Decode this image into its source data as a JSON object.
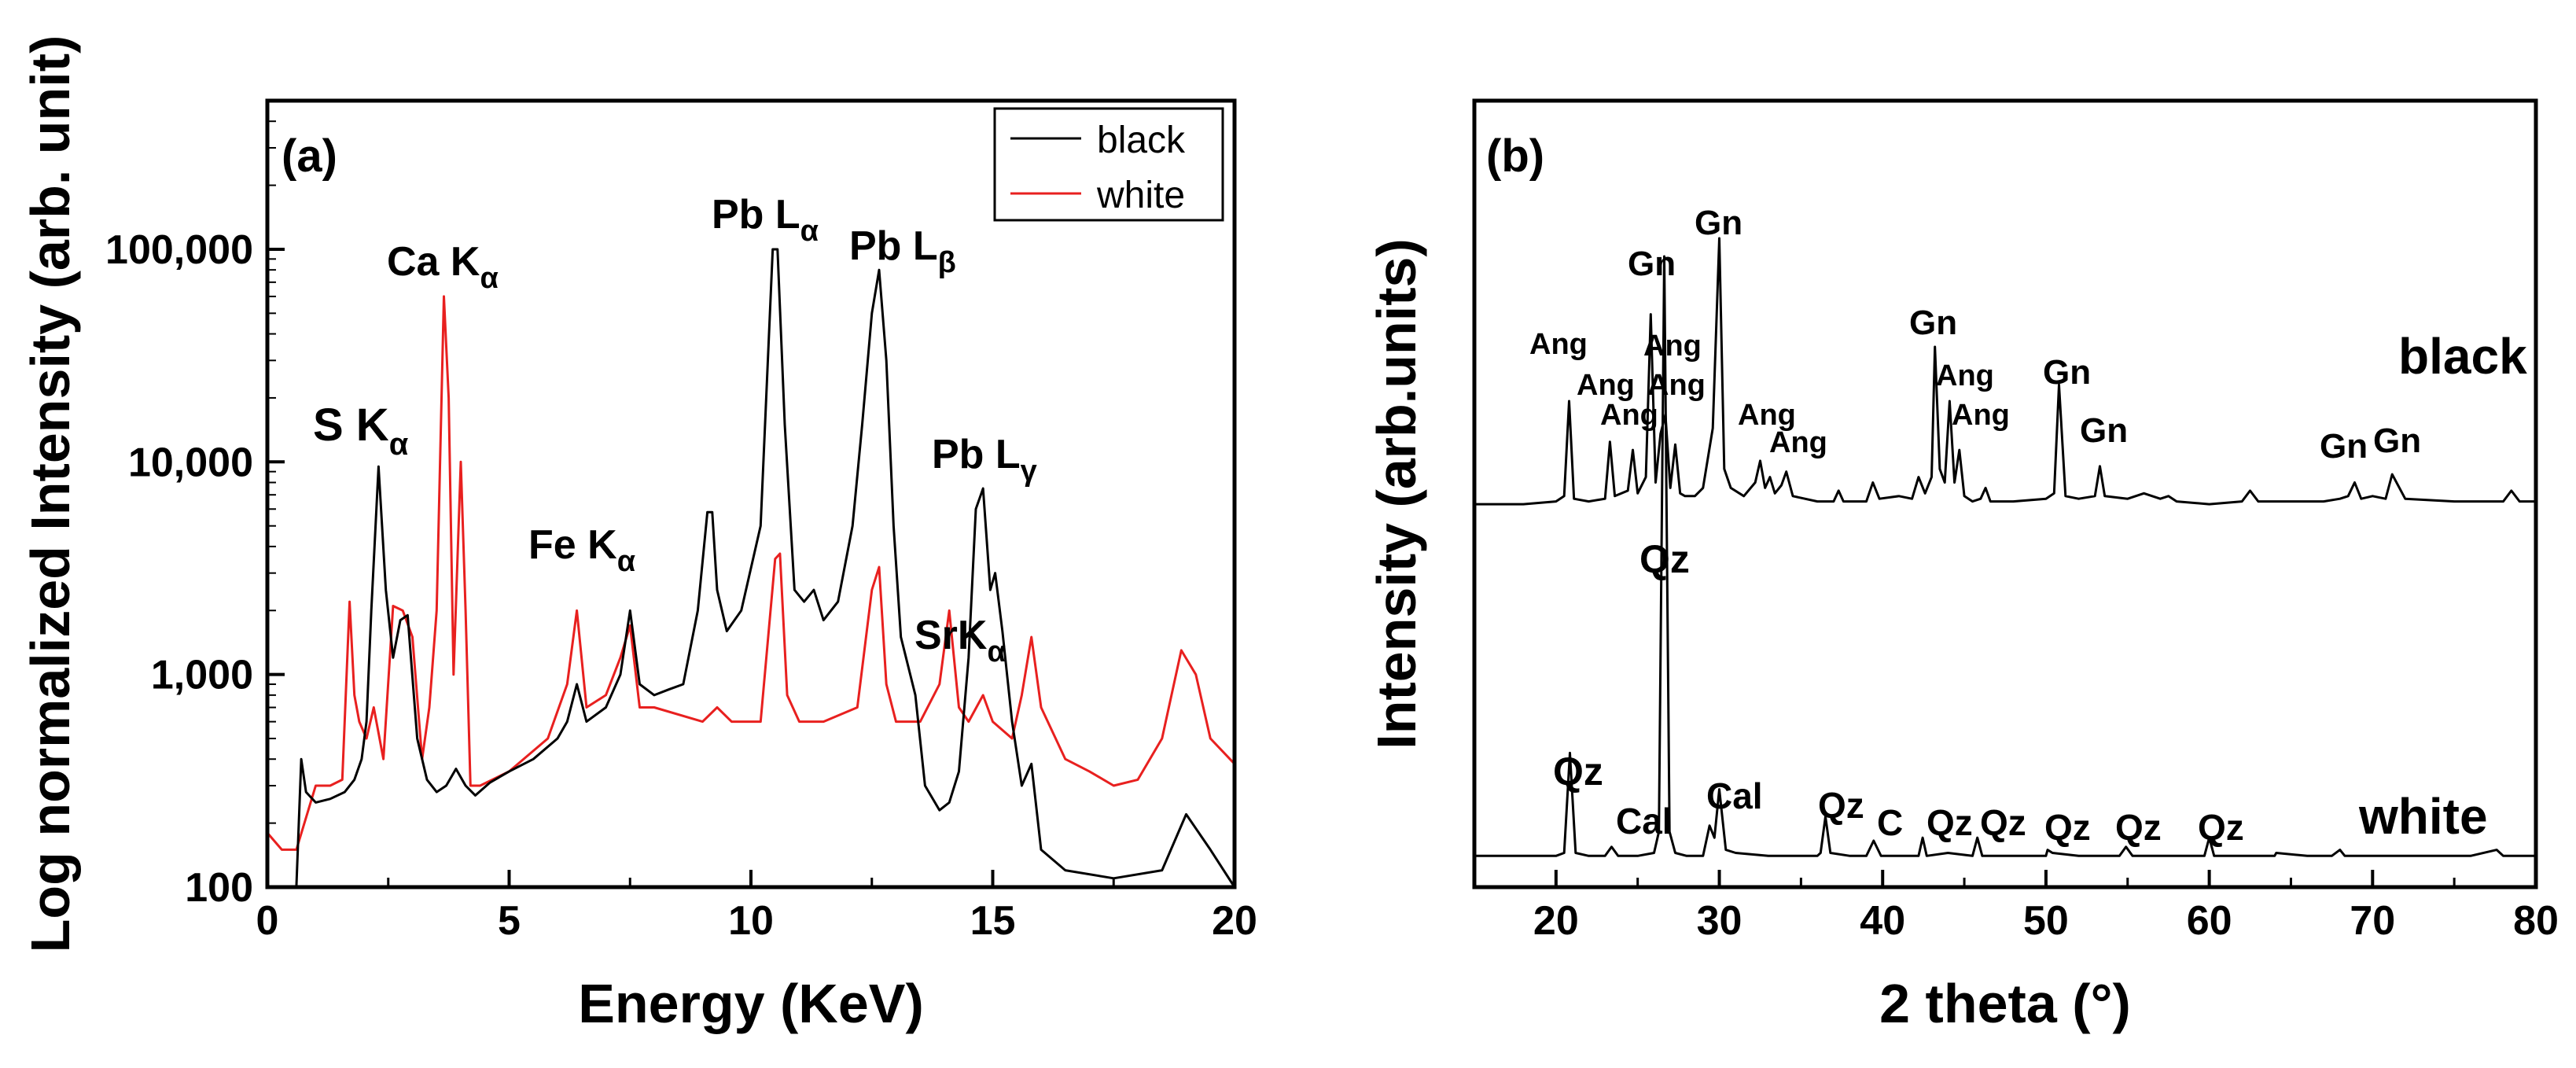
{
  "chart_data": [
    {
      "type": "line",
      "panel_label": "(a)",
      "title": "",
      "xlabel": "Energy (KeV)",
      "ylabel": "Log normalized Intensity (arb. unit)",
      "xlim": [
        0,
        20
      ],
      "ylim": [
        100,
        500000
      ],
      "yscale": "log",
      "xticks": [
        0,
        5,
        10,
        15,
        20
      ],
      "xtick_labels": [
        "0",
        "5",
        "10",
        "15",
        "20"
      ],
      "yticks": [
        100,
        1000,
        10000,
        100000
      ],
      "ytick_labels": [
        "100",
        "1,000",
        "10,000",
        "100,000"
      ],
      "legend": {
        "placement": "top-right",
        "entries": [
          "black",
          "white"
        ]
      },
      "series": [
        {
          "name": "black",
          "color": "#000000",
          "x": [
            0.0,
            0.3,
            0.6,
            0.7,
            0.8,
            1.0,
            1.3,
            1.6,
            1.8,
            1.95,
            2.05,
            2.15,
            2.3,
            2.45,
            2.6,
            2.75,
            2.9,
            3.1,
            3.3,
            3.5,
            3.7,
            3.9,
            4.1,
            4.3,
            4.6,
            5.0,
            5.5,
            6.0,
            6.2,
            6.4,
            6.6,
            7.0,
            7.3,
            7.5,
            7.7,
            8.0,
            8.3,
            8.6,
            8.9,
            9.1,
            9.2,
            9.3,
            9.5,
            9.8,
            10.2,
            10.45,
            10.55,
            10.7,
            10.9,
            11.1,
            11.3,
            11.5,
            11.8,
            12.1,
            12.3,
            12.5,
            12.65,
            12.8,
            12.95,
            13.1,
            13.4,
            13.6,
            13.9,
            14.1,
            14.3,
            14.5,
            14.65,
            14.8,
            14.95,
            15.05,
            15.2,
            15.4,
            15.6,
            15.8,
            16.0,
            16.5,
            17.5,
            18.5,
            19.0,
            19.5,
            20.0
          ],
          "values": [
            100,
            100,
            100,
            400,
            280,
            250,
            260,
            280,
            320,
            400,
            600,
            2000,
            9500,
            2500,
            1200,
            1800,
            1900,
            500,
            320,
            280,
            300,
            360,
            300,
            270,
            310,
            350,
            400,
            500,
            600,
            900,
            600,
            700,
            1000,
            2000,
            900,
            800,
            850,
            900,
            2000,
            5800,
            5800,
            2500,
            1600,
            2000,
            5000,
            100000,
            100000,
            15000,
            2500,
            2200,
            2500,
            1800,
            2200,
            5000,
            15000,
            50000,
            80000,
            30000,
            5000,
            1500,
            800,
            300,
            230,
            250,
            350,
            1200,
            6000,
            7500,
            2500,
            3000,
            1600,
            600,
            300,
            380,
            150,
            120,
            110,
            120,
            220,
            150,
            100
          ]
        },
        {
          "name": "white",
          "color": "#e8201f",
          "x": [
            0.0,
            0.3,
            0.6,
            1.0,
            1.3,
            1.55,
            1.7,
            1.8,
            1.9,
            2.05,
            2.2,
            2.4,
            2.6,
            2.8,
            3.0,
            3.2,
            3.35,
            3.5,
            3.65,
            3.75,
            3.85,
            4.0,
            4.1,
            4.2,
            4.4,
            5.0,
            5.8,
            6.2,
            6.4,
            6.6,
            7.0,
            7.3,
            7.5,
            7.7,
            8.0,
            9.0,
            9.3,
            9.6,
            10.2,
            10.5,
            10.6,
            10.75,
            11.0,
            11.5,
            12.2,
            12.5,
            12.65,
            12.8,
            13.0,
            13.5,
            13.9,
            14.1,
            14.3,
            14.5,
            14.8,
            15.0,
            15.4,
            15.6,
            15.8,
            16.0,
            16.5,
            17.0,
            17.5,
            18.0,
            18.5,
            18.9,
            19.2,
            19.5,
            20.0
          ],
          "values": [
            180,
            150,
            150,
            300,
            300,
            320,
            2200,
            800,
            600,
            500,
            700,
            400,
            2100,
            2000,
            1500,
            400,
            700,
            2000,
            60000,
            20000,
            1000,
            10000,
            2000,
            300,
            300,
            350,
            500,
            900,
            2000,
            700,
            800,
            1200,
            1700,
            700,
            700,
            600,
            700,
            600,
            600,
            3500,
            3700,
            800,
            600,
            600,
            700,
            2500,
            3200,
            900,
            600,
            600,
            900,
            2000,
            700,
            600,
            800,
            600,
            500,
            800,
            1500,
            700,
            400,
            350,
            300,
            320,
            500,
            1300,
            1000,
            500,
            380
          ]
        }
      ],
      "annotations": [
        "S K",
        "Ca K",
        "Fe K",
        "Pb L",
        "Pb L",
        "SrK",
        "Pb L"
      ],
      "annotation_subscripts": [
        "α",
        "α",
        "α",
        "α",
        "β",
        "α",
        "γ"
      ]
    },
    {
      "type": "line",
      "panel_label": "(b)",
      "title": "",
      "xlabel": "2 theta (°)",
      "ylabel": "Intensity (arb.units)",
      "xlim": [
        15,
        80
      ],
      "xticks": [
        20,
        30,
        40,
        50,
        60,
        70,
        80
      ],
      "xtick_labels": [
        "20",
        "30",
        "40",
        "50",
        "60",
        "70",
        "80"
      ],
      "series": [
        {
          "name": "black",
          "color": "#000000",
          "x": [
            15,
            18,
            20,
            20.5,
            20.8,
            21.1,
            22,
            23,
            23.3,
            23.6,
            24.4,
            24.7,
            25.0,
            25.5,
            25.8,
            26.1,
            26.4,
            26.7,
            27.0,
            27.3,
            27.6,
            27.9,
            28.5,
            29.0,
            29.6,
            30.0,
            30.3,
            30.7,
            31.5,
            32.2,
            32.5,
            32.8,
            33.1,
            33.4,
            33.8,
            34.1,
            34.5,
            36,
            37,
            37.3,
            37.6,
            39,
            39.4,
            39.8,
            41,
            41.8,
            42.2,
            42.6,
            43.0,
            43.2,
            43.5,
            43.8,
            44.1,
            44.4,
            44.7,
            45.0,
            45.5,
            46,
            46.3,
            46.6,
            48,
            50,
            50.5,
            50.8,
            51.2,
            52,
            53,
            53.3,
            53.6,
            55,
            56,
            57,
            57.5,
            58,
            60,
            62,
            62.5,
            63,
            65,
            67,
            68,
            68.5,
            68.9,
            69.3,
            70,
            70.8,
            71.2,
            72,
            75,
            78,
            78.5,
            79,
            80
          ],
          "values": [
            0.02,
            0.02,
            0.03,
            0.05,
            0.4,
            0.04,
            0.03,
            0.04,
            0.25,
            0.05,
            0.07,
            0.22,
            0.06,
            0.12,
            0.72,
            0.1,
            0.28,
            0.35,
            0.08,
            0.24,
            0.06,
            0.05,
            0.05,
            0.08,
            0.3,
            1.0,
            0.15,
            0.08,
            0.05,
            0.1,
            0.18,
            0.08,
            0.12,
            0.06,
            0.09,
            0.14,
            0.05,
            0.03,
            0.03,
            0.07,
            0.03,
            0.03,
            0.1,
            0.04,
            0.05,
            0.04,
            0.12,
            0.06,
            0.12,
            0.6,
            0.15,
            0.1,
            0.4,
            0.1,
            0.22,
            0.05,
            0.03,
            0.04,
            0.08,
            0.03,
            0.03,
            0.04,
            0.06,
            0.46,
            0.05,
            0.04,
            0.05,
            0.16,
            0.05,
            0.04,
            0.06,
            0.04,
            0.05,
            0.03,
            0.02,
            0.03,
            0.07,
            0.03,
            0.03,
            0.03,
            0.04,
            0.05,
            0.1,
            0.04,
            0.05,
            0.04,
            0.13,
            0.04,
            0.03,
            0.03,
            0.07,
            0.03,
            0.03
          ]
        },
        {
          "name": "white",
          "color": "#000000",
          "x": [
            15,
            18,
            20,
            20.5,
            20.85,
            21.2,
            22,
            23,
            23.4,
            23.8,
            25,
            26,
            26.3,
            26.63,
            26.95,
            27.3,
            28,
            29,
            29.4,
            29.7,
            30.0,
            30.4,
            31,
            33,
            36,
            36.2,
            36.5,
            36.8,
            38,
            39,
            39.45,
            39.9,
            41,
            42.2,
            42.45,
            42.7,
            44,
            45.5,
            45.8,
            46.1,
            48,
            50,
            50.1,
            50.4,
            52,
            54.5,
            54.9,
            55.3,
            58,
            59.7,
            60.0,
            60.3,
            62,
            64,
            64.1,
            66,
            67.5,
            68,
            68.3,
            70,
            73,
            76,
            77.6,
            78,
            80
          ],
          "values": [
            0.02,
            0.02,
            0.02,
            0.03,
            0.36,
            0.03,
            0.02,
            0.02,
            0.05,
            0.02,
            0.02,
            0.03,
            0.1,
            2.0,
            0.1,
            0.03,
            0.02,
            0.02,
            0.12,
            0.08,
            0.24,
            0.04,
            0.03,
            0.02,
            0.02,
            0.03,
            0.15,
            0.03,
            0.02,
            0.02,
            0.07,
            0.02,
            0.02,
            0.02,
            0.08,
            0.02,
            0.03,
            0.02,
            0.08,
            0.02,
            0.02,
            0.02,
            0.04,
            0.03,
            0.02,
            0.02,
            0.05,
            0.02,
            0.02,
            0.02,
            0.08,
            0.02,
            0.02,
            0.02,
            0.03,
            0.02,
            0.02,
            0.04,
            0.02,
            0.02,
            0.02,
            0.02,
            0.04,
            0.02,
            0.02
          ]
        }
      ],
      "series_labels": [
        "black",
        "white"
      ],
      "annotations": [
        "Ang",
        "Ang",
        "Ang",
        "Gn",
        "Ang",
        "Ang",
        "Gn",
        "Ang",
        "Ang",
        "Gn",
        "Ang",
        "Ang",
        "Gn",
        "Gn",
        "Gn",
        "Gn",
        "Qz",
        "Qz",
        "Cal",
        "Cal",
        "Qz",
        "C",
        "Qz",
        "Qz",
        "Qz",
        "Qz",
        "Qz"
      ]
    }
  ]
}
